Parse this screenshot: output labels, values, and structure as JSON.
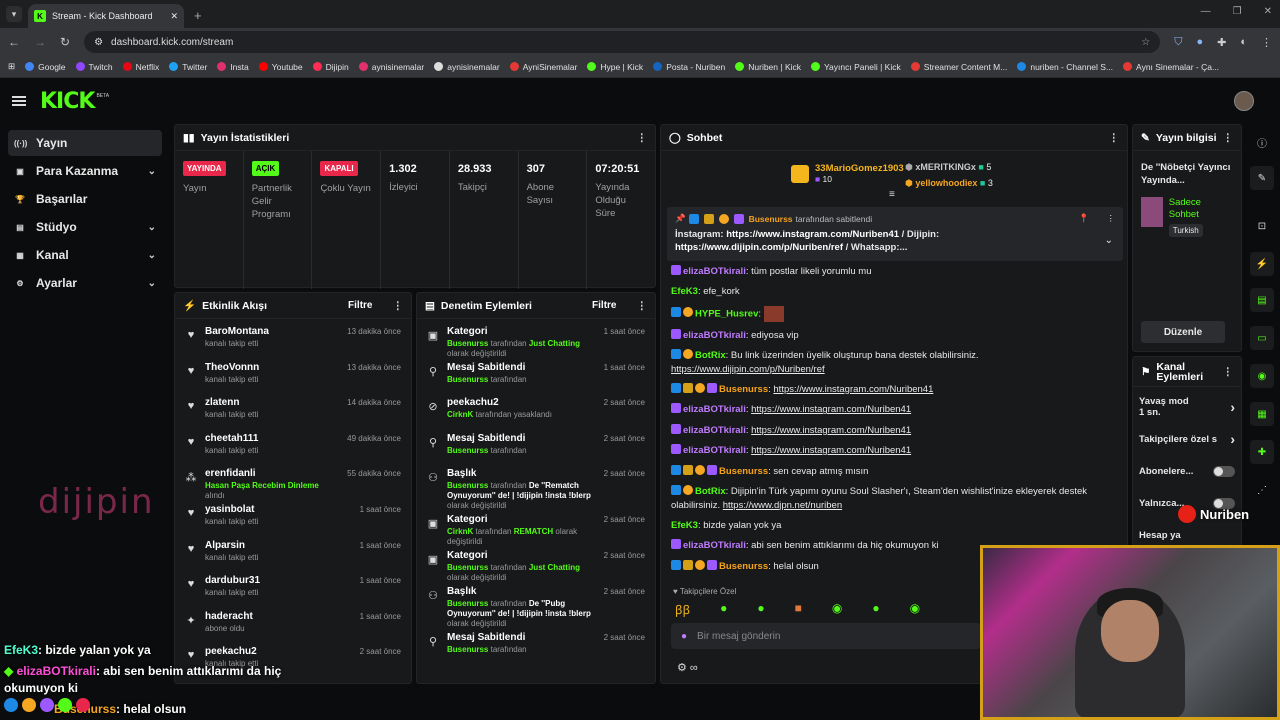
{
  "browser": {
    "tab_title": "Stream - Kick Dashboard",
    "url": "dashboard.kick.com/stream",
    "bookmarks": [
      "Google",
      "Twitch",
      "Netflix",
      "Twitter",
      "Insta",
      "Youtube",
      "Dijipin",
      "aynisinemalar",
      "aynisinemalar",
      "AyniSinemalar",
      "Hype | Kick",
      "Posta - Nuriben",
      "Nuriben | Kick",
      "Yayıncı Paneli | Kick",
      "Streamer Content M...",
      "nuriben - Channel S...",
      "Aynı Sinemalar - Ça..."
    ]
  },
  "app": {
    "logo": "KICK",
    "beta": "BETA"
  },
  "sidebar": {
    "items": [
      {
        "label": "Yayın",
        "icon": "broadcast-icon",
        "active": true,
        "chevron": false
      },
      {
        "label": "Para Kazanma",
        "icon": "wallet-icon",
        "active": false,
        "chevron": true
      },
      {
        "label": "Başarılar",
        "icon": "trophy-icon",
        "active": false,
        "chevron": false
      },
      {
        "label": "Stüdyo",
        "icon": "studio-icon",
        "active": false,
        "chevron": true
      },
      {
        "label": "Kanal",
        "icon": "channel-icon",
        "active": false,
        "chevron": true
      },
      {
        "label": "Ayarlar",
        "icon": "gear-icon",
        "active": false,
        "chevron": true
      }
    ],
    "watermark": "dijipin"
  },
  "stats": {
    "title": "Yayın İstatistikleri",
    "items": [
      {
        "badge": "YAYINDA",
        "label": "Yayın",
        "color": "#e8274b"
      },
      {
        "badge": "AÇIK",
        "label": "Partnerlik Gelir Programı",
        "color": "#53fc18"
      },
      {
        "badge": "KAPALI",
        "label": "Çoklu Yayın",
        "color": "#e8274b"
      },
      {
        "value": "1.302",
        "label": "İzleyici"
      },
      {
        "value": "28.933",
        "label": "Takipçi"
      },
      {
        "value": "307",
        "label": "Abone Sayısı"
      },
      {
        "value": "07:20:51",
        "label": "Yayında Olduğu Süre"
      }
    ]
  },
  "activity": {
    "title": "Etkinlik Akışı",
    "filter": "Filtre",
    "rows": [
      {
        "name": "BaroMontana",
        "desc": "kanalı takip etti",
        "time": "13 dakika önce"
      },
      {
        "name": "TheoVonnn",
        "desc": "kanalı takip etti",
        "time": "13 dakika önce"
      },
      {
        "name": "zlatenn",
        "desc": "kanalı takip etti",
        "time": "14 dakika önce"
      },
      {
        "name": "cheetah111",
        "desc": "kanalı takip etti",
        "time": "49 dakika önce"
      },
      {
        "name": "erenfidanli",
        "hl": "Hasan Paşa Recebim Dinleme",
        "desc": "alındı",
        "time": "55 dakika önce"
      },
      {
        "name": "yasinbolat",
        "desc": "kanalı takip etti",
        "time": "1 saat önce"
      },
      {
        "name": "Alparsin",
        "desc": "kanalı takip etti",
        "time": "1 saat önce"
      },
      {
        "name": "dardubur31",
        "desc": "kanalı takip etti",
        "time": "1 saat önce"
      },
      {
        "name": "haderacht",
        "desc": "abone oldu",
        "time": "1 saat önce"
      },
      {
        "name": "peekachu2",
        "desc": "kanalı takip etti",
        "time": "2 saat önce"
      }
    ]
  },
  "moderation": {
    "title": "Denetim Eylemleri",
    "filter": "Filtre",
    "rows": [
      {
        "name": "Kategori",
        "who": "Busenurss",
        "mid": "tarafından",
        "hl": "Just Chatting",
        "tail": "olarak değiştirildi",
        "time": "1 saat önce"
      },
      {
        "name": "Mesaj Sabitlendi",
        "who": "Busenurss",
        "mid": "tarafından",
        "hl": "",
        "tail": "",
        "time": "1 saat önce"
      },
      {
        "name": "peekachu2",
        "who": "CirknK",
        "mid": "tarafından yasaklandı",
        "hl": "",
        "tail": "",
        "time": "2 saat önce"
      },
      {
        "name": "Mesaj Sabitlendi",
        "who": "Busenurss",
        "mid": "tarafından",
        "hl": "",
        "tail": "",
        "time": "2 saat önce"
      },
      {
        "name": "Başlık",
        "who": "Busenurss",
        "mid": "tarafından",
        "hl": "De ''Rematch Oynuyorum'' de! | !dijipin !insta !blerp",
        "tail": "olarak değiştirildi",
        "time": "2 saat önce"
      },
      {
        "name": "Kategori",
        "who": "CirknK",
        "mid": "tarafından",
        "hl": "REMATCH",
        "tail": "olarak değiştirildi",
        "time": "2 saat önce"
      },
      {
        "name": "Kategori",
        "who": "Busenurss",
        "mid": "tarafından",
        "hl": "Just Chatting",
        "tail": "olarak değiştirildi",
        "time": "2 saat önce"
      },
      {
        "name": "Başlık",
        "who": "Busenurss",
        "mid": "tarafından",
        "hl": "De ''Pubg Oynuyorum'' de! | !dijipin !insta !blerp",
        "tail": "olarak değiştirildi",
        "time": "2 saat önce"
      },
      {
        "name": "Mesaj Sabitlendi",
        "who": "Busenurss",
        "mid": "tarafından",
        "hl": "",
        "tail": "",
        "time": "2 saat önce"
      }
    ]
  },
  "chat": {
    "title": "Sohbet",
    "leaders": [
      {
        "name": "33MarioGomez1903",
        "count": "10"
      },
      {
        "name": "xMERITKINGx",
        "count": "5"
      },
      {
        "name": "yellowhoodiex",
        "count": "3"
      }
    ],
    "pinned": {
      "by": "Busenurss",
      "by_suffix": "tarafından sabitlendi",
      "prefix": "İnstagram:",
      "link1": "https://www.instagram.com/Nuriben41",
      "mid": "/ Dijipin:",
      "link2": "https://www.dijipin.com/p/Nuriben/ref",
      "tail": "/ Whatsapp:..."
    },
    "messages": [
      {
        "user": "elizaBOTkirali",
        "color": "pur",
        "text": "tüm postlar likeli yorumlu mu"
      },
      {
        "user": "EfeK3",
        "color": "tea",
        "text": "efe_kork"
      },
      {
        "user": "HYPE_Husrev",
        "color": "grn",
        "text": ""
      },
      {
        "user": "elizaBOTkirali",
        "color": "pur",
        "text": "ediyosa vip"
      },
      {
        "user": "BotRix",
        "color": "grn",
        "text": "Bu link üzerinden üyelik oluşturup bana destek olabilirsiniz.",
        "link": "https://www.dijipin.com/p/Nuriben/ref"
      },
      {
        "user": "Busenurss",
        "color": "org",
        "text": "",
        "link": "https://www.instagram.com/Nuriben41"
      },
      {
        "user": "elizaBOTkirali",
        "color": "pur",
        "text": "",
        "link": "https://www.instagram.com/Nuriben41"
      },
      {
        "user": "elizaBOTkirali",
        "color": "pur",
        "text": "",
        "link": "https://www.instagram.com/Nuriben41"
      },
      {
        "user": "elizaBOTkirali",
        "color": "pur",
        "text": "",
        "link": "https://www.instagram.com/Nuriben41"
      },
      {
        "user": "Busenurss",
        "color": "org",
        "text": "sen cevap atmış mısın"
      },
      {
        "user": "BotRix",
        "color": "grn",
        "text": "Dijipin'in Türk yapımı oyunu Soul Slasher'ı, Steam'den wishlist'inize ekleyerek destek olabilirsiniz.",
        "link": "https://www.djpn.net/nuriben"
      },
      {
        "user": "EfeK3",
        "color": "tea",
        "text": "bizde yalan yok ya"
      },
      {
        "user": "elizaBOTkirali",
        "color": "pur",
        "text": "abi sen benim attıklarımı da hiç okumuyon ki"
      },
      {
        "user": "Busenurss",
        "color": "org",
        "text": "helal olsun"
      }
    ],
    "followers_only": "Takipçilere Özel",
    "input_placeholder": "Bir mesaj gönderin"
  },
  "stream_info": {
    "title": "Yayın bilgisi",
    "stream_title": "De ''Nöbetçi Yayıncı Yayında...",
    "category": "Sadece Sohbet",
    "language": "Turkish",
    "edit": "Düzenle"
  },
  "channel_actions": {
    "title": "Kanal Eylemleri",
    "items": [
      {
        "label": "Yavaş mod",
        "sub": "1 sn."
      },
      {
        "label": "Takipçilere özel s",
        "sub": ""
      },
      {
        "label": "Abonelere...",
        "sub": ""
      },
      {
        "label": "Yalnızca...",
        "sub": ""
      },
      {
        "label": "Hesap ya",
        "sub": ""
      }
    ]
  },
  "overlay": {
    "lines": [
      {
        "user": "EfeK3",
        "text": ": bizde yalan yok ya"
      },
      {
        "user": "elizaBOTkirali",
        "text": ": abi sen benim attıklarımı da hiç okumuyon ki"
      },
      {
        "user": "Busenurss",
        "text": ": helal olsun"
      }
    ],
    "yt_name": "Nuriben"
  }
}
